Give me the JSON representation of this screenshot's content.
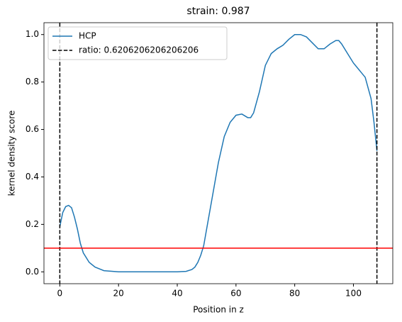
{
  "chart_data": {
    "type": "line",
    "title": "strain: 0.987",
    "x_label": "Position in z",
    "y_label": "kernel density score",
    "x": [
      0,
      1,
      2,
      3,
      4,
      5,
      6,
      7,
      8,
      10,
      12,
      15,
      20,
      25,
      30,
      35,
      40,
      43,
      45,
      46,
      47,
      48,
      49,
      50,
      52,
      54,
      56,
      58,
      60,
      62,
      64,
      65,
      66,
      68,
      70,
      72,
      74,
      76,
      78,
      80,
      82,
      84,
      86,
      88,
      90,
      92,
      94,
      95,
      96,
      98,
      100,
      102,
      104,
      106,
      107,
      108
    ],
    "series": [
      {
        "name": "HCP",
        "color": "#1f77b4",
        "values": [
          0.19,
          0.25,
          0.275,
          0.28,
          0.27,
          0.23,
          0.18,
          0.12,
          0.08,
          0.04,
          0.02,
          0.005,
          0,
          0,
          0,
          0,
          0,
          0.002,
          0.01,
          0.02,
          0.04,
          0.07,
          0.11,
          0.18,
          0.32,
          0.46,
          0.57,
          0.63,
          0.66,
          0.665,
          0.65,
          0.65,
          0.67,
          0.76,
          0.87,
          0.92,
          0.94,
          0.955,
          0.98,
          1.0,
          1.0,
          0.99,
          0.965,
          0.94,
          0.94,
          0.96,
          0.975,
          0.975,
          0.96,
          0.92,
          0.88,
          0.85,
          0.82,
          0.73,
          0.63,
          0.51
        ]
      }
    ],
    "vlines": {
      "name": "ratio: 0.6206206206206206",
      "color": "#000000",
      "values": [
        0,
        108
      ]
    },
    "hline": {
      "color": "#ff0000",
      "value": 0.1
    },
    "legend": "upper left",
    "xlim": [
      -5.4,
      113.4
    ],
    "xticks": [
      0,
      20,
      40,
      60,
      80,
      100
    ],
    "ylim": [
      -0.05,
      1.05
    ],
    "yticks": [
      {
        "value": 0,
        "label": "0.0"
      },
      {
        "value": 0.2,
        "label": "0.2"
      },
      {
        "value": 0.4,
        "label": "0.4"
      },
      {
        "value": 0.6,
        "label": "0.6"
      },
      {
        "value": 0.8,
        "label": "0.8"
      },
      {
        "value": 1,
        "label": "1.0"
      }
    ]
  }
}
